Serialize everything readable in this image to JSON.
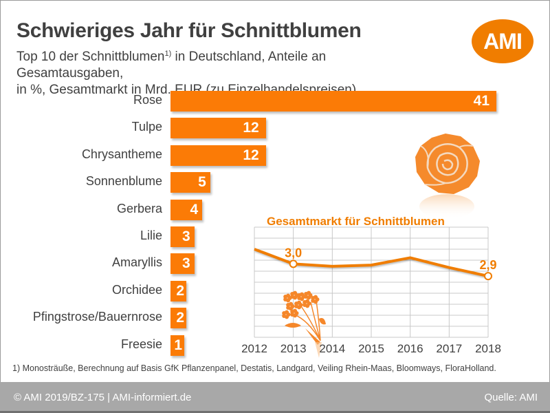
{
  "header": {
    "title": "Schwieriges Jahr für Schnittblumen",
    "subtitle_part1": "Top 10 der Schnittblumen",
    "subtitle_sup": "1)",
    "subtitle_part2": " in Deutschland, Anteile an Gesamtausgaben,",
    "subtitle_line2": "in %, Gesamtmarkt in Mrd. EUR (zu Einzelhandelspreisen)",
    "logo_text": "AMI"
  },
  "colors": {
    "accent": "#f07d00",
    "bar": "#fb7b06",
    "text": "#404040",
    "footer_bg": "#a8a8a8",
    "grid": "#c8c8c8"
  },
  "icons": {
    "rose": "rose-icon",
    "bouquet": "bouquet-icon"
  },
  "chart_data": [
    {
      "type": "bar",
      "orientation": "horizontal",
      "title": "Top 10 der Schnittblumen in Deutschland, Anteile an Gesamtausgaben",
      "unit": "%",
      "categories": [
        "Rose",
        "Tulpe",
        "Chrysantheme",
        "Sonnenblume",
        "Gerbera",
        "Lilie",
        "Amaryllis",
        "Orchidee",
        "Pfingstrose/Bauernrose",
        "Freesie"
      ],
      "values": [
        41,
        12,
        12,
        5,
        4,
        3,
        3,
        2,
        2,
        1
      ],
      "value_labels": [
        "41",
        "12",
        "12",
        "5",
        "4",
        "3",
        "3",
        "2",
        "2",
        "1"
      ],
      "xlim": [
        0,
        41
      ]
    },
    {
      "type": "line",
      "title": "Gesamtmarkt für Schnittblumen",
      "unit": "Mrd. EUR",
      "x": [
        "2012",
        "2013",
        "2014",
        "2015",
        "2016",
        "2017",
        "2018"
      ],
      "series": [
        {
          "name": "Gesamtmarkt",
          "values": [
            3.12,
            3.0,
            2.98,
            2.99,
            3.05,
            2.97,
            2.9
          ]
        }
      ],
      "annotations": [
        {
          "x": "2013",
          "label": "3,0"
        },
        {
          "x": "2018",
          "label": "2,9"
        }
      ],
      "ylim": [
        2.4,
        3.3
      ],
      "grid": true,
      "yaxis_visible": false
    }
  ],
  "footnote": "1) Monosträuße, Berechnung auf Basis GfK Pflanzenpanel, Destatis, Landgard, Veiling Rhein-Maas, Bloomways, FloraHolland.",
  "footer": {
    "left": "© AMI 2019/BZ-175 | AMI-informiert.de",
    "right": "Quelle: AMI"
  }
}
